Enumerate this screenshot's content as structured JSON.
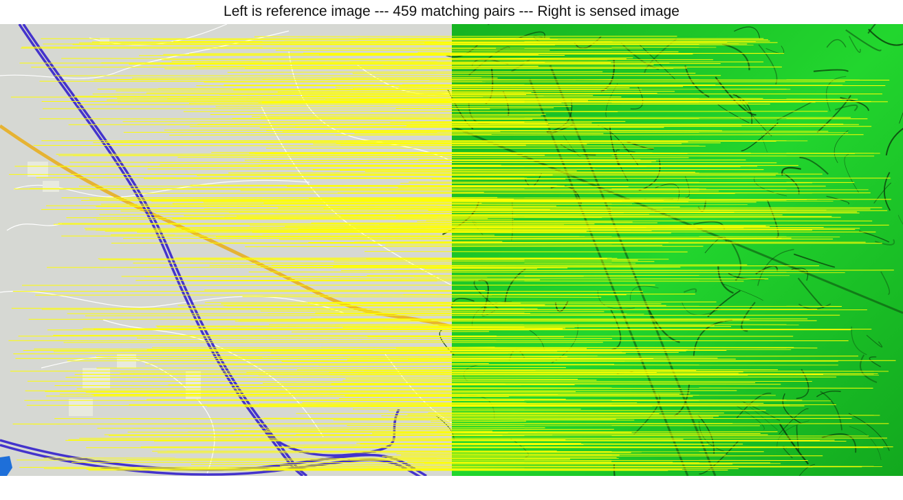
{
  "title": "Left is reference image --- 459 matching pairs --- Right is sensed image",
  "panels": {
    "left": {
      "content": "map",
      "background": "#d6d8d3"
    },
    "right": {
      "content": "terrain",
      "background": "#1fcf2c"
    }
  },
  "colors": {
    "match_line": "#ffff00",
    "highway": "#4433cc",
    "major_road": "#e6b333",
    "minor_road": "#ffffff",
    "water": "#1e6fd9",
    "terrain_bright": "#22d62e",
    "terrain_dark": "#0a3a0a"
  }
}
